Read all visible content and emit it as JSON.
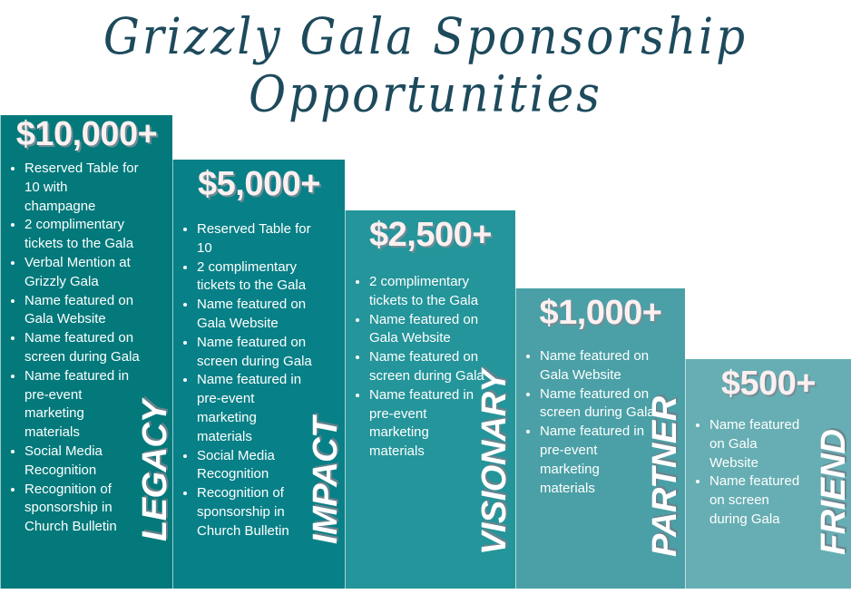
{
  "title": "Grizzly Gala Sponsorship Opportunities",
  "colors": {
    "title": "#1d4a5c",
    "legacy": "#03797b",
    "impact": "#088087",
    "visionary": "#24959a",
    "partner": "#4aa0a6",
    "friend": "#66aeb3"
  },
  "tiers": [
    {
      "amount": "$10,000+",
      "name": "LEGACY",
      "benefits": [
        "Reserved Table for 10 with champagne",
        "2 complimentary tickets to the Gala",
        "Verbal Mention at Grizzly Gala",
        "Name featured on Gala Website",
        "Name featured on screen during Gala",
        "Name featured in pre-event marketing materials",
        "Social Media Recognition",
        "Recognition of sponsorship in Church Bulletin"
      ]
    },
    {
      "amount": "$5,000+",
      "name": "IMPACT",
      "benefits": [
        "Reserved Table for 10",
        "2 complimentary tickets to the Gala",
        "Name featured on Gala Website",
        "Name featured on screen during Gala",
        "Name featured in pre-event marketing materials",
        "Social Media Recognition",
        "Recognition of sponsorship in Church Bulletin"
      ]
    },
    {
      "amount": "$2,500+",
      "name": "VISIONARY",
      "benefits": [
        "2 complimentary tickets to the Gala",
        "Name featured on Gala Website",
        "Name featured on screen during Gala",
        "Name featured in pre-event marketing materials"
      ]
    },
    {
      "amount": "$1,000+",
      "name": "PARTNER",
      "benefits": [
        "Name featured on Gala Website",
        "Name featured on screen during Gala",
        "Name featured in pre-event marketing materials"
      ]
    },
    {
      "amount": "$500+",
      "name": "FRIEND",
      "benefits": [
        "Name featured on Gala Website",
        "Name featured on screen during Gala"
      ]
    }
  ]
}
